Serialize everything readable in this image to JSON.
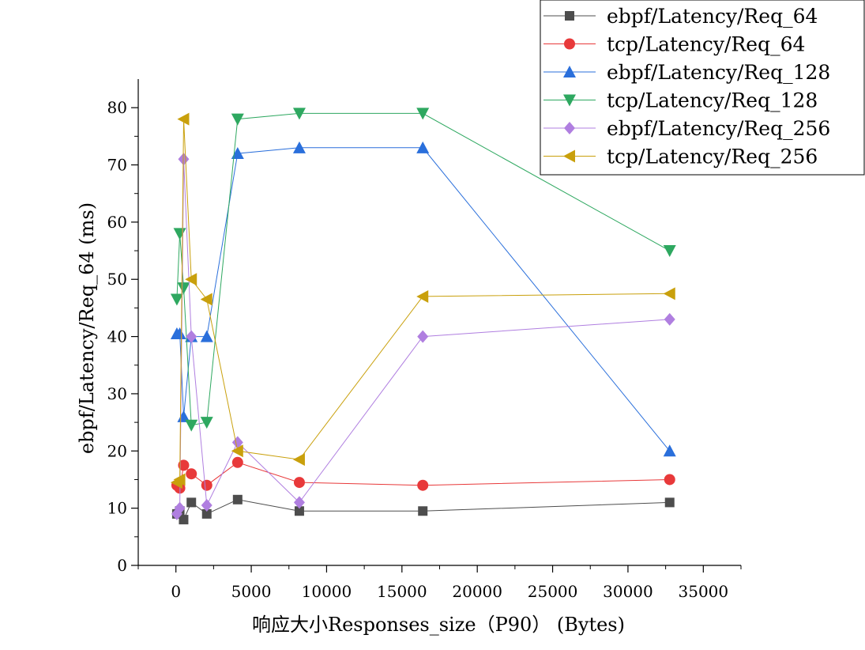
{
  "chart_data": {
    "type": "line",
    "title": "",
    "xlabel": "响应大小Responses_size（P90） (Bytes)",
    "ylabel": "ebpf/Latency/Req_64 (ms)",
    "xlim": [
      -2500,
      37500
    ],
    "ylim": [
      0,
      85
    ],
    "xticks": [
      0,
      5000,
      10000,
      15000,
      20000,
      25000,
      30000,
      35000
    ],
    "yticks": [
      0,
      10,
      20,
      30,
      40,
      50,
      60,
      70,
      80
    ],
    "grid": false,
    "legend_position": "top-right",
    "series": [
      {
        "name": "ebpf/Latency/Req_64",
        "color": "#4d4d4d",
        "marker": "square",
        "x": [
          64,
          256,
          512,
          1024,
          2048,
          4096,
          8192,
          16384,
          32768
        ],
        "y": [
          9,
          9.5,
          8,
          11,
          9,
          11.5,
          9.5,
          9.5,
          11
        ]
      },
      {
        "name": "tcp/Latency/Req_64",
        "color": "#e8393a",
        "marker": "circle",
        "x": [
          64,
          256,
          512,
          1024,
          2048,
          4096,
          8192,
          16384,
          32768
        ],
        "y": [
          14,
          13.5,
          17.5,
          16,
          14,
          18,
          14.5,
          14,
          15
        ]
      },
      {
        "name": "ebpf/Latency/Req_128",
        "color": "#2a6fdb",
        "marker": "triangle-up",
        "x": [
          64,
          256,
          512,
          1024,
          2048,
          4096,
          8192,
          16384,
          32768
        ],
        "y": [
          40.5,
          40.5,
          26,
          40,
          40,
          72,
          73,
          73,
          20
        ]
      },
      {
        "name": "tcp/Latency/Req_128",
        "color": "#2ea860",
        "marker": "triangle-down",
        "x": [
          64,
          256,
          512,
          1024,
          2048,
          4096,
          8192,
          16384,
          32768
        ],
        "y": [
          46.5,
          58,
          48.5,
          24.5,
          25,
          78,
          79,
          79,
          55
        ]
      },
      {
        "name": "ebpf/Latency/Req_256",
        "color": "#b07fe0",
        "marker": "diamond",
        "x": [
          64,
          256,
          512,
          1024,
          2048,
          4096,
          8192,
          16384,
          32768
        ],
        "y": [
          9,
          10,
          71,
          40,
          10.5,
          21.5,
          11,
          40,
          43
        ]
      },
      {
        "name": "tcp/Latency/Req_256",
        "color": "#c9a00c",
        "marker": "triangle-left",
        "x": [
          64,
          256,
          512,
          1024,
          2048,
          4096,
          8192,
          16384,
          32768
        ],
        "y": [
          14.5,
          15,
          78,
          50,
          46.5,
          20,
          18.5,
          47,
          47.5
        ]
      }
    ]
  }
}
